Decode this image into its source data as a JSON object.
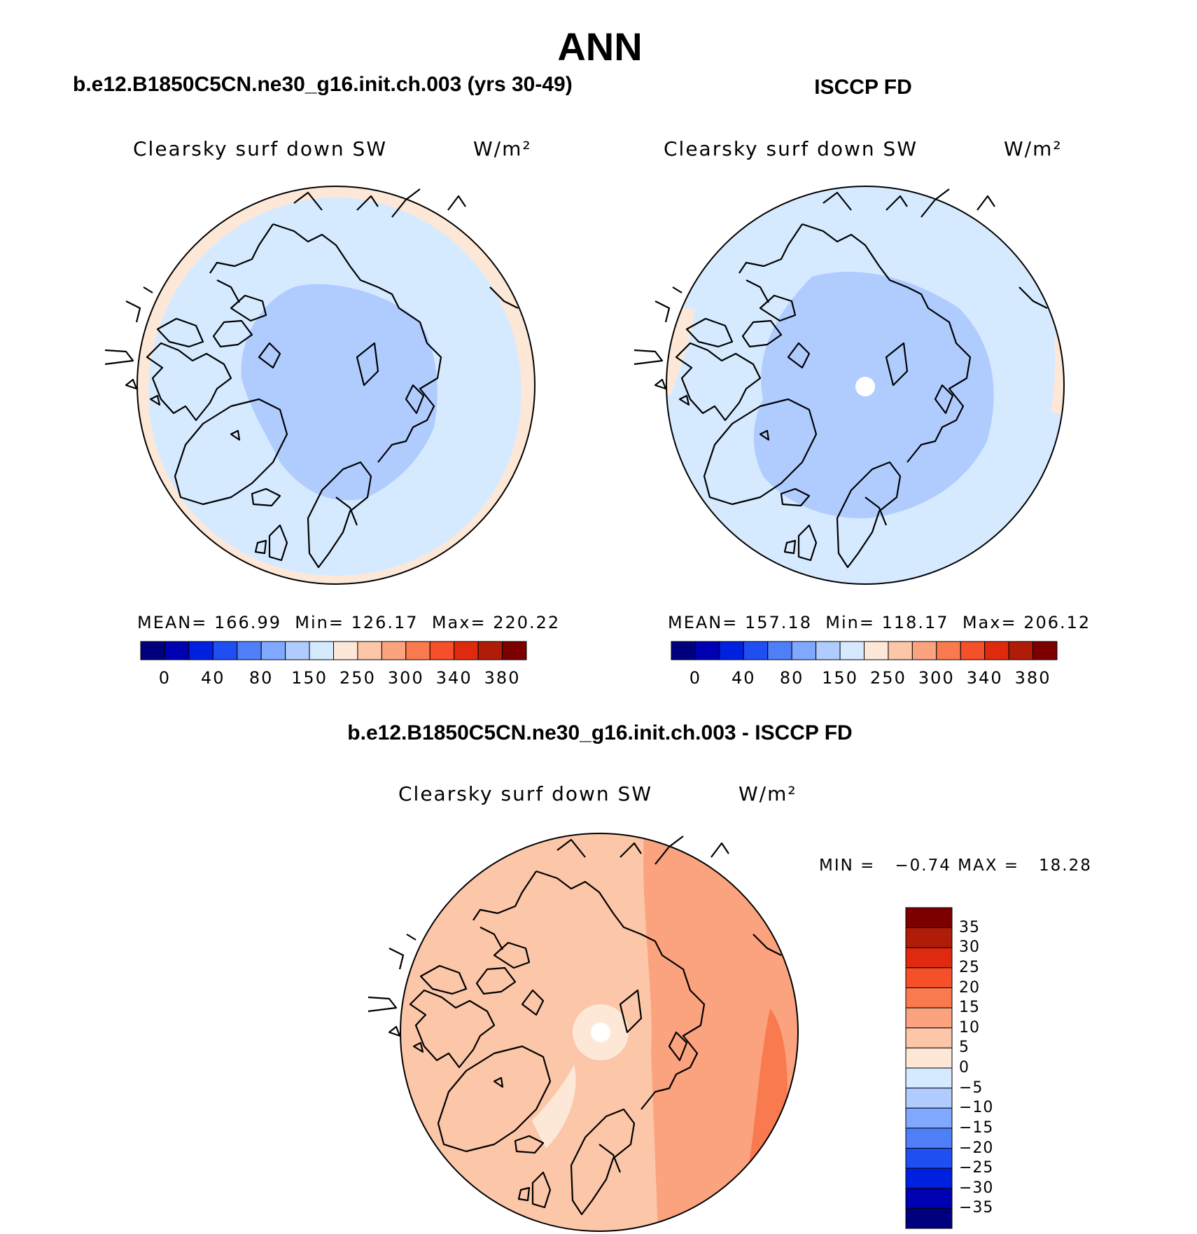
{
  "page_title": "ANN",
  "panels": [
    {
      "header": "b.e12.B1850C5CN.ne30_g16.init.ch.003 (yrs 30-49)",
      "variable": "Clearsky surf down SW",
      "units": "W/m²",
      "stats": {
        "mean_label": "MEAN=",
        "mean": "166.99",
        "min_label": "Min=",
        "min": "126.17",
        "max_label": "Max=",
        "max": "220.22"
      }
    },
    {
      "header": "ISCCP FD",
      "variable": "Clearsky surf down SW",
      "units": "W/m²",
      "stats": {
        "mean_label": "MEAN=",
        "mean": "157.18",
        "min_label": "Min=",
        "min": "118.17",
        "max_label": "Max=",
        "max": "206.12"
      }
    }
  ],
  "abs_colorbar": {
    "colors": [
      "#00007f",
      "#0000b3",
      "#0020e0",
      "#1f4ff2",
      "#4f7ff7",
      "#80a8ff",
      "#b0ccff",
      "#d6eaff",
      "#fde8d8",
      "#fcc6a8",
      "#fba27f",
      "#f97a4f",
      "#f5502a",
      "#e02a10",
      "#b01c08",
      "#7d0000"
    ],
    "labels": [
      "0",
      "40",
      "80",
      "150",
      "250",
      "300",
      "340",
      "380"
    ]
  },
  "diff_panel": {
    "header": "b.e12.B1850C5CN.ne30_g16.init.ch.003 - ISCCP FD",
    "variable": "Clearsky surf down SW",
    "units": "W/m²",
    "stats": {
      "min_label": "MIN =",
      "min": "−0.74",
      "max_label": "MAX =",
      "max": "18.28"
    }
  },
  "diff_colorbar": {
    "colors": [
      "#7d0000",
      "#b01c08",
      "#e02a10",
      "#f5502a",
      "#f97a4f",
      "#fba27f",
      "#fcc6a8",
      "#fde8d8",
      "#d6eaff",
      "#b0ccff",
      "#80a8ff",
      "#4f7ff7",
      "#1f4ff2",
      "#0020e0",
      "#0000b3",
      "#00007f"
    ],
    "labels": [
      "35",
      "30",
      "25",
      "20",
      "15",
      "10",
      "5",
      "0",
      "−5",
      "−10",
      "−15",
      "−20",
      "−25",
      "−30",
      "−35"
    ]
  }
}
